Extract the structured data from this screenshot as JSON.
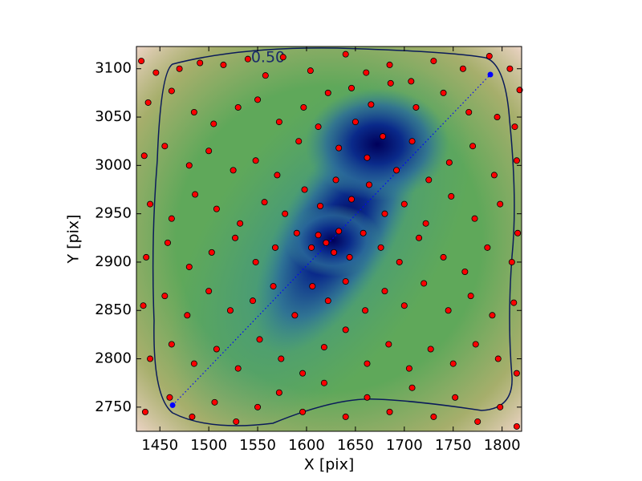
{
  "chart_data": {
    "type": "scatter",
    "x_label": "X [pix]",
    "y_label": "Y [pix]",
    "xlim": [
      1426,
      1820
    ],
    "ylim": [
      2725,
      3123
    ],
    "xticks": [
      1450,
      1500,
      1550,
      1600,
      1650,
      1700,
      1750,
      1800
    ],
    "yticks": [
      2750,
      2800,
      2850,
      2900,
      2950,
      3000,
      3050,
      3100
    ],
    "grid": false,
    "color": "#ff0000",
    "contour": {
      "value": 0.5,
      "label": "0.50"
    },
    "segment": {
      "color": "#0000ff",
      "x": [
        1463,
        1788
      ],
      "y": [
        2752,
        3094
      ]
    },
    "x": [
      1431,
      1446,
      1470,
      1491,
      1515,
      1540,
      1558,
      1576,
      1604,
      1640,
      1661,
      1685,
      1707,
      1730,
      1760,
      1787,
      1808,
      1818,
      1438,
      1462,
      1485,
      1505,
      1530,
      1550,
      1572,
      1597,
      1622,
      1646,
      1666,
      1686,
      1712,
      1740,
      1766,
      1795,
      1813,
      1434,
      1455,
      1480,
      1500,
      1525,
      1548,
      1570,
      1592,
      1612,
      1633,
      1650,
      1662,
      1678,
      1692,
      1708,
      1725,
      1746,
      1770,
      1792,
      1815,
      1440,
      1462,
      1486,
      1508,
      1532,
      1557,
      1578,
      1598,
      1614,
      1630,
      1646,
      1664,
      1680,
      1700,
      1722,
      1748,
      1772,
      1798,
      1816,
      1436,
      1458,
      1480,
      1503,
      1527,
      1548,
      1568,
      1590,
      1605,
      1612,
      1620,
      1628,
      1633,
      1644,
      1658,
      1676,
      1695,
      1715,
      1740,
      1762,
      1785,
      1810,
      1433,
      1455,
      1478,
      1500,
      1522,
      1545,
      1566,
      1588,
      1606,
      1622,
      1640,
      1660,
      1680,
      1700,
      1720,
      1745,
      1768,
      1790,
      1812,
      1440,
      1462,
      1485,
      1508,
      1530,
      1552,
      1574,
      1596,
      1618,
      1640,
      1662,
      1684,
      1705,
      1727,
      1750,
      1773,
      1796,
      1815,
      1435,
      1460,
      1483,
      1506,
      1528,
      1550,
      1572,
      1596,
      1618,
      1640,
      1662,
      1685,
      1708,
      1730,
      1752,
      1775,
      1798,
      1815
    ],
    "y": [
      3108,
      3096,
      3100,
      3106,
      3104,
      3110,
      3093,
      3112,
      3098,
      3115,
      3096,
      3104,
      3087,
      3108,
      3100,
      3113,
      3100,
      3078,
      3065,
      3077,
      3055,
      3043,
      3060,
      3068,
      3045,
      3060,
      3075,
      3080,
      3063,
      3085,
      3060,
      3075,
      3055,
      3050,
      3040,
      3010,
      3020,
      3000,
      3015,
      2995,
      3005,
      2990,
      3025,
      3040,
      3018,
      3045,
      3008,
      3030,
      2995,
      3025,
      2985,
      3003,
      3020,
      2990,
      3005,
      2960,
      2945,
      2970,
      2955,
      2940,
      2962,
      2950,
      2975,
      2958,
      2985,
      2965,
      2980,
      2950,
      2960,
      2940,
      2968,
      2945,
      2960,
      2930,
      2905,
      2920,
      2895,
      2910,
      2925,
      2900,
      2915,
      2930,
      2915,
      2928,
      2920,
      2910,
      2932,
      2905,
      2930,
      2915,
      2900,
      2925,
      2905,
      2890,
      2915,
      2900,
      2855,
      2865,
      2845,
      2870,
      2850,
      2860,
      2875,
      2845,
      2875,
      2860,
      2880,
      2850,
      2870,
      2855,
      2878,
      2850,
      2865,
      2845,
      2858,
      2800,
      2815,
      2795,
      2810,
      2790,
      2820,
      2800,
      2785,
      2812,
      2830,
      2795,
      2815,
      2790,
      2810,
      2795,
      2815,
      2800,
      2785,
      2745,
      2760,
      2740,
      2755,
      2735,
      2750,
      2765,
      2745,
      2775,
      2740,
      2760,
      2745,
      2770,
      2740,
      2760,
      2735,
      2750,
      2730
    ]
  }
}
